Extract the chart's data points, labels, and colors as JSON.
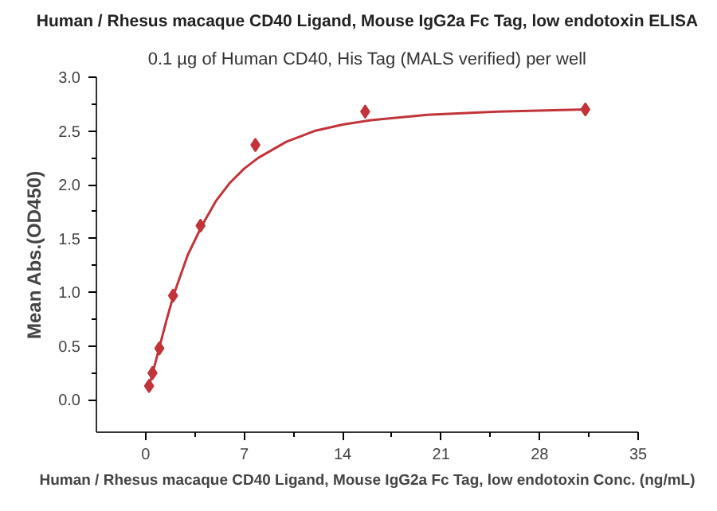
{
  "chart_data": {
    "type": "scatter",
    "title": "Human / Rhesus macaque CD40 Ligand, Mouse IgG2a Fc Tag, low endotoxin ELISA",
    "subtitle": "0.1 µg of Human CD40, His Tag (MALS verified) per well",
    "xlabel": "Human / Rhesus macaque CD40 Ligand, Mouse IgG2a Fc Tag, low endotoxin Conc. (ng/mL)",
    "ylabel": "Mean Abs.(OD450)",
    "x": [
      0.244,
      0.488,
      0.977,
      1.95,
      3.9,
      7.8,
      15.6,
      31.25
    ],
    "series": [
      {
        "color": "#c1343a",
        "marker": "diamond",
        "values": [
          0.13,
          0.25,
          0.48,
          0.97,
          1.62,
          2.37,
          2.68,
          2.7
        ]
      },
      {
        "type": "line",
        "color": "#c1343a",
        "marker": "none",
        "line_style": "solid",
        "x": [
          0.244,
          0.5,
          1,
          1.5,
          2,
          3,
          4,
          5,
          6,
          7,
          8,
          10,
          12,
          14,
          16,
          20,
          25,
          31.25
        ],
        "values": [
          0.13,
          0.25,
          0.5,
          0.75,
          0.98,
          1.35,
          1.62,
          1.85,
          2.02,
          2.15,
          2.25,
          2.4,
          2.5,
          2.56,
          2.6,
          2.65,
          2.68,
          2.7
        ]
      }
    ],
    "xlim": [
      -3.5,
      35
    ],
    "ylim": [
      -0.3,
      3.0
    ],
    "xticks": [
      0,
      7,
      14,
      21,
      28,
      35
    ],
    "yticks": [
      {
        "value": 0,
        "label": "0.0"
      },
      {
        "value": 0.5,
        "label": "0.5"
      },
      {
        "value": 1,
        "label": "1.0"
      },
      {
        "value": 1.5,
        "label": "1.5"
      },
      {
        "value": 2,
        "label": "2.0"
      },
      {
        "value": 2.5,
        "label": "2.5"
      },
      {
        "value": 3,
        "label": "3.0"
      }
    ],
    "grid": false
  }
}
